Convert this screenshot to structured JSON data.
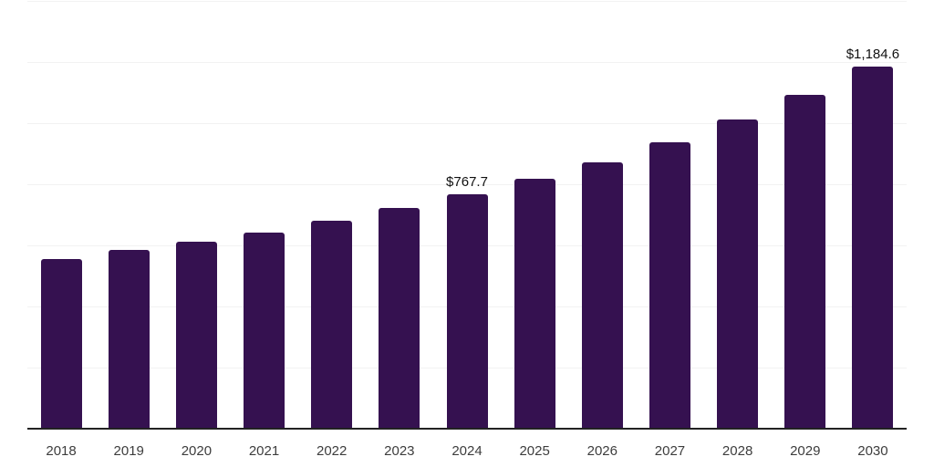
{
  "chart_data": {
    "type": "bar",
    "title": "",
    "xlabel": "",
    "ylabel": "",
    "categories": [
      "2018",
      "2019",
      "2020",
      "2021",
      "2022",
      "2023",
      "2024",
      "2025",
      "2026",
      "2027",
      "2028",
      "2029",
      "2030"
    ],
    "values": [
      555,
      584,
      611,
      642,
      680,
      721,
      767.7,
      817,
      872,
      938,
      1011,
      1092,
      1184.6
    ],
    "value_labels": [
      "",
      "",
      "",
      "",
      "",
      "",
      "$767.7",
      "",
      "",
      "",
      "",
      "",
      "$1,184.6"
    ],
    "ylim": [
      0,
      1400
    ],
    "gridline_step": 200,
    "grid": "horizontal-only",
    "legend": "none",
    "y_tick_labels_visible": false,
    "colors": {
      "bar": "#351150",
      "gridline": "#f2f2f2",
      "axis_line": "#222222",
      "tick_label": "#3d3d3d",
      "value_label": "#111111",
      "background": "#ffffff"
    }
  }
}
